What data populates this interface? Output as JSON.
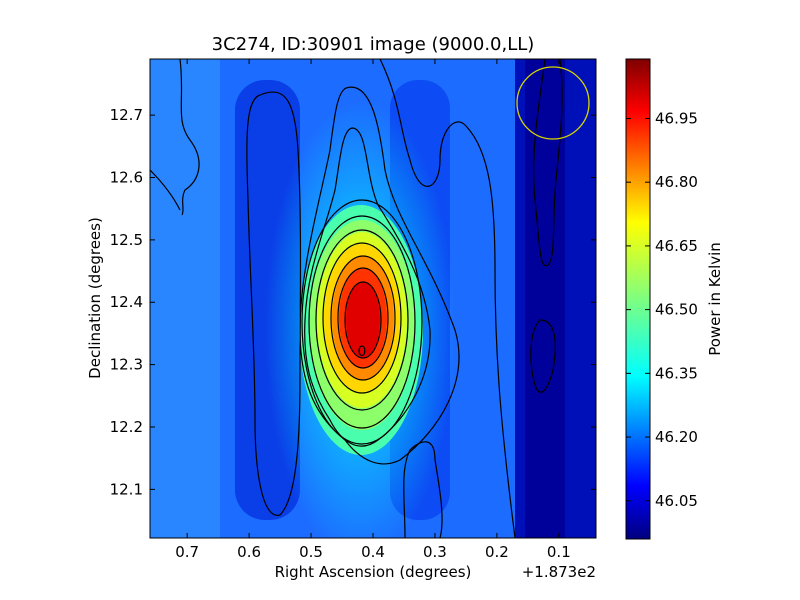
{
  "chart_data": {
    "type": "heatmap",
    "title": "3C274, ID:30901 image (9000.0,LL)",
    "xlabel": "Right Ascension (degrees)",
    "ylabel": "Declination (degrees)",
    "x_offset_text": "+1.873e2",
    "x_range": [
      0.76,
      0.04
    ],
    "y_range": [
      12.022,
      12.79
    ],
    "x_ticks": [
      "0.7",
      "0.6",
      "0.5",
      "0.4",
      "0.3",
      "0.2",
      "0.1"
    ],
    "y_ticks": [
      "12.1",
      "12.2",
      "12.3",
      "12.4",
      "12.5",
      "12.6",
      "12.7"
    ],
    "colorbar": {
      "label": "Power in Kelvin",
      "range": [
        45.96,
        47.09
      ],
      "ticks": [
        "46.05",
        "46.20",
        "46.35",
        "46.50",
        "46.65",
        "46.80",
        "46.95"
      ],
      "colormap": "jet"
    },
    "peak": {
      "ra_offset": 0.42,
      "dec": 12.335,
      "label": "0"
    },
    "beam_circle": {
      "ra_offset": 0.115,
      "dec": 12.725,
      "color": "#d4d400"
    },
    "contours": "black"
  }
}
